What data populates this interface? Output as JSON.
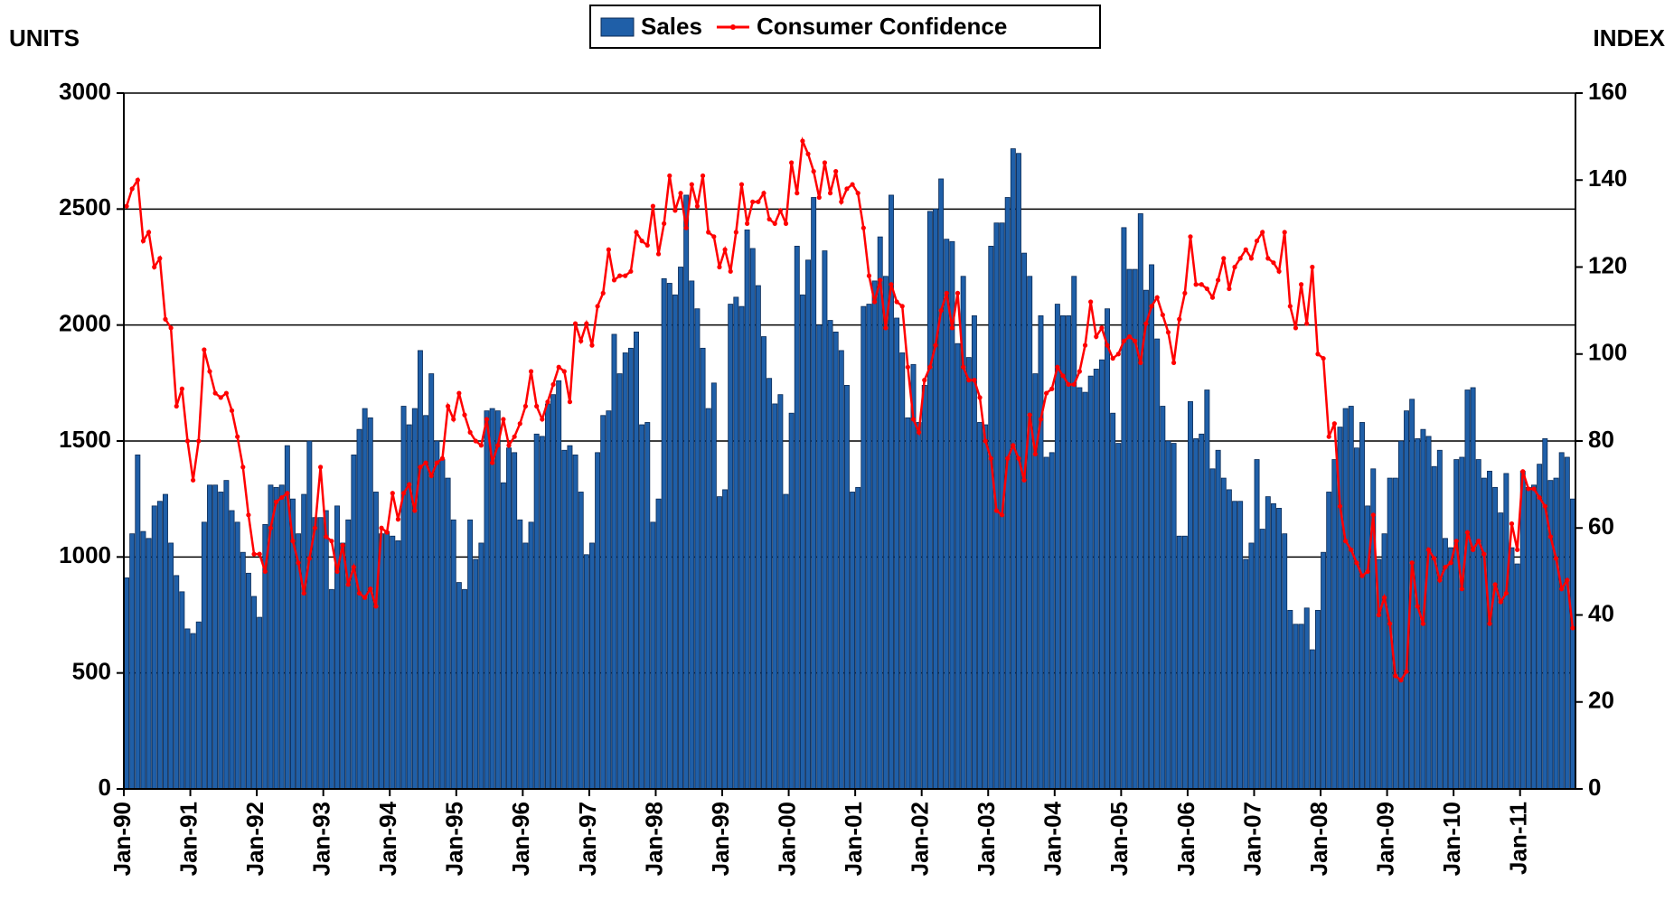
{
  "chart_data": {
    "type": "bar",
    "ylabel": "UNITS",
    "y2label": "INDEX",
    "categories": [
      "Jan-90",
      null,
      null,
      null,
      null,
      null,
      null,
      null,
      null,
      null,
      null,
      null,
      "Jan-91",
      null,
      null,
      null,
      null,
      null,
      null,
      null,
      null,
      null,
      null,
      null,
      "Jan-92",
      null,
      null,
      null,
      null,
      null,
      null,
      null,
      null,
      null,
      null,
      null,
      "Jan-93",
      null,
      null,
      null,
      null,
      null,
      null,
      null,
      null,
      null,
      null,
      null,
      "Jan-94",
      null,
      null,
      null,
      null,
      null,
      null,
      null,
      null,
      null,
      null,
      null,
      "Jan-95",
      null,
      null,
      null,
      null,
      null,
      null,
      null,
      null,
      null,
      null,
      null,
      "Jan-96",
      null,
      null,
      null,
      null,
      null,
      null,
      null,
      null,
      null,
      null,
      null,
      "Jan-97",
      null,
      null,
      null,
      null,
      null,
      null,
      null,
      null,
      null,
      null,
      null,
      "Jan-98",
      null,
      null,
      null,
      null,
      null,
      null,
      null,
      null,
      null,
      null,
      null,
      "Jan-99",
      null,
      null,
      null,
      null,
      null,
      null,
      null,
      null,
      null,
      null,
      null,
      "Jan-00",
      null,
      null,
      null,
      null,
      null,
      null,
      null,
      null,
      null,
      null,
      null,
      "Jan-01",
      null,
      null,
      null,
      null,
      null,
      null,
      null,
      null,
      null,
      null,
      null,
      "Jan-02",
      null,
      null,
      null,
      null,
      null,
      null,
      null,
      null,
      null,
      null,
      null,
      "Jan-03",
      null,
      null,
      null,
      null,
      null,
      null,
      null,
      null,
      null,
      null,
      null,
      "Jan-04",
      null,
      null,
      null,
      null,
      null,
      null,
      null,
      null,
      null,
      null,
      null,
      "Jan-05",
      null,
      null,
      null,
      null,
      null,
      null,
      null,
      null,
      null,
      null,
      null,
      "Jan-06",
      null,
      null,
      null,
      null,
      null,
      null,
      null,
      null,
      null,
      null,
      null,
      "Jan-07",
      null,
      null,
      null,
      null,
      null,
      null,
      null,
      null,
      null,
      null,
      null,
      "Jan-08",
      null,
      null,
      null,
      null,
      null,
      null,
      null,
      null,
      null,
      null,
      null,
      "Jan-09",
      null,
      null,
      null,
      null,
      null,
      null,
      null,
      null,
      null,
      null,
      null,
      "Jan-10",
      null,
      null,
      null,
      null,
      null,
      null,
      null,
      null,
      null,
      null,
      null,
      "Jan-11",
      null,
      null,
      null,
      null,
      null,
      null,
      null,
      null,
      null
    ],
    "series": [
      {
        "name": "Sales",
        "type": "bar",
        "color": "#1f5fa8",
        "values": [
          910,
          1100,
          1440,
          1110,
          1080,
          1220,
          1240,
          1270,
          1060,
          920,
          850,
          690,
          670,
          720,
          1150,
          1310,
          1310,
          1280,
          1330,
          1200,
          1150,
          1020,
          930,
          830,
          740,
          1140,
          1310,
          1300,
          1310,
          1480,
          1250,
          1100,
          1270,
          1500,
          1170,
          1170,
          1200,
          860,
          1220,
          1060,
          1160,
          1440,
          1550,
          1640,
          1600,
          1280,
          1100,
          1110,
          1090,
          1070,
          1650,
          1570,
          1640,
          1890,
          1610,
          1790,
          1500,
          1420,
          1340,
          1160,
          890,
          860,
          1160,
          990,
          1060,
          1630,
          1640,
          1630,
          1320,
          1470,
          1450,
          1160,
          1060,
          1150,
          1530,
          1520,
          1660,
          1700,
          1760,
          1460,
          1480,
          1440,
          1280,
          1010,
          1060,
          1450,
          1610,
          1630,
          1960,
          1790,
          1880,
          1900,
          1970,
          1570,
          1580,
          1150,
          1250,
          2200,
          2180,
          2130,
          2250,
          2560,
          2190,
          2070,
          1900,
          1640,
          1750,
          1260,
          1290,
          2090,
          2120,
          2080,
          2410,
          2330,
          2170,
          1950,
          1770,
          1660,
          1700,
          1270,
          1620,
          2340,
          2130,
          2280,
          2550,
          2000,
          2320,
          2020,
          1970,
          1890,
          1740,
          1280,
          1300,
          2080,
          2090,
          2190,
          2380,
          2210,
          2560,
          2030,
          1880,
          1600,
          1830,
          1580,
          1740,
          2490,
          2500,
          2630,
          2370,
          2360,
          1920,
          2210,
          1860,
          2040,
          1580,
          1570,
          2340,
          2440,
          2440,
          2550,
          2760,
          2740,
          2310,
          2210,
          1790,
          2040,
          1430,
          1450,
          2090,
          2040,
          2040,
          2210,
          1730,
          1710,
          1780,
          1810,
          1850,
          2070,
          1620,
          1490,
          2420,
          2240,
          2240,
          2480,
          2150,
          2260,
          1940,
          1650,
          1500,
          1490,
          1090,
          1090,
          1670,
          1510,
          1530,
          1720,
          1380,
          1460,
          1340,
          1290,
          1240,
          1240,
          990,
          1060,
          1420,
          1120,
          1260,
          1230,
          1210,
          1100,
          770,
          710,
          710,
          780,
          600,
          770,
          1020,
          1280,
          1420,
          1560,
          1640,
          1650,
          1470,
          1580,
          1220,
          1380,
          990,
          1100,
          1340,
          1340,
          1500,
          1630,
          1680,
          1510,
          1550,
          1520,
          1390,
          1460,
          1080,
          1040,
          1420,
          1430,
          1720,
          1730,
          1420,
          1340,
          1370,
          1300,
          1190,
          1360,
          1040,
          970,
          1370,
          1300,
          1310,
          1400,
          1510,
          1330,
          1340,
          1450,
          1430,
          1250
        ]
      },
      {
        "name": "Consumer Confidence",
        "type": "line",
        "axis": "y2",
        "color": "#ff0000",
        "values": [
          134,
          138,
          140,
          126,
          128,
          120,
          122,
          108,
          106,
          88,
          92,
          80,
          71,
          80,
          101,
          96,
          91,
          90,
          91,
          87,
          81,
          74,
          63,
          54,
          54,
          50,
          60,
          66,
          67,
          68,
          57,
          52,
          45,
          53,
          60,
          74,
          58,
          57,
          50,
          56,
          47,
          51,
          45,
          44,
          46,
          42,
          60,
          59,
          68,
          62,
          68,
          70,
          64,
          74,
          75,
          72,
          75,
          76,
          88,
          85,
          91,
          86,
          82,
          80,
          79,
          85,
          75,
          79,
          85,
          79,
          81,
          84,
          88,
          96,
          88,
          85,
          89,
          93,
          97,
          96,
          89,
          107,
          103,
          107,
          102,
          111,
          114,
          124,
          117,
          118,
          118,
          119,
          128,
          126,
          125,
          134,
          123,
          130,
          141,
          133,
          137,
          129,
          139,
          134,
          141,
          128,
          127,
          120,
          124,
          119,
          128,
          139,
          130,
          135,
          135,
          137,
          131,
          130,
          133,
          130,
          144,
          137,
          149,
          146,
          142,
          136,
          144,
          137,
          142,
          135,
          138,
          139,
          137,
          129,
          118,
          112,
          117,
          106,
          116,
          112,
          111,
          97,
          85,
          82,
          94,
          97,
          102,
          110,
          114,
          106,
          114,
          97,
          94,
          94,
          90,
          80,
          76,
          64,
          63,
          76,
          79,
          76,
          71,
          86,
          77,
          85,
          91,
          92,
          97,
          95,
          93,
          93,
          96,
          102,
          112,
          104,
          106,
          102,
          99,
          100,
          103,
          104,
          103,
          98,
          107,
          111,
          113,
          109,
          105,
          98,
          108,
          114,
          127,
          116,
          116,
          115,
          113,
          117,
          122,
          115,
          120,
          122,
          124,
          122,
          126,
          128,
          122,
          121,
          119,
          128,
          111,
          106,
          116,
          107,
          120,
          100,
          99,
          81,
          84,
          65,
          57,
          55,
          52,
          49,
          50,
          63,
          40,
          44,
          38,
          26,
          25,
          27,
          52,
          42,
          38,
          55,
          53,
          48,
          51,
          52,
          57,
          46,
          59,
          55,
          57,
          54,
          38,
          47,
          43,
          45,
          61,
          55,
          73,
          69,
          69,
          67,
          65,
          58,
          53,
          46,
          48,
          37
        ]
      }
    ],
    "ylim": [
      0,
      3000
    ],
    "yticks": [
      0,
      500,
      1000,
      1500,
      2000,
      2500,
      3000
    ],
    "y2lim": [
      0,
      160
    ],
    "y2ticks": [
      0,
      20,
      40,
      60,
      80,
      100,
      120,
      140,
      160
    ],
    "grid": true,
    "legend": "top"
  }
}
